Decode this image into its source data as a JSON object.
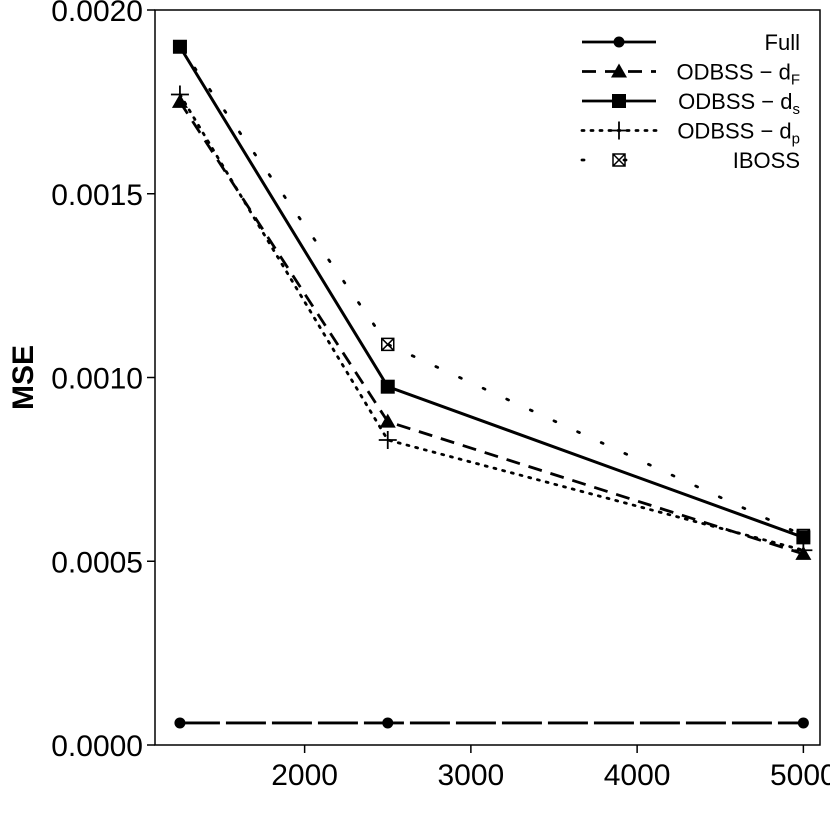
{
  "chart_data": {
    "type": "line",
    "title": "",
    "xlabel": "",
    "ylabel": "MSE",
    "xlim": [
      1100,
      5100
    ],
    "ylim": [
      0.0,
      0.002
    ],
    "x": [
      1250,
      2500,
      5000
    ],
    "xticks": [
      2000,
      3000,
      4000,
      5000
    ],
    "xtick_labels": [
      "2000",
      "3000",
      "4000",
      "5000"
    ],
    "yticks": [
      0.0,
      0.0005,
      0.001,
      0.0015,
      0.002
    ],
    "ytick_labels": [
      "0.0000",
      "0.0005",
      "0.0010",
      "0.0015",
      "0.0020"
    ],
    "grid": false,
    "legend_position": "top-right",
    "series": [
      {
        "name": "Full",
        "label_main": "Full",
        "label_sub": "",
        "values": [
          6e-05,
          6e-05,
          6e-05
        ],
        "line": "longdash",
        "marker": "circle"
      },
      {
        "name": "ODBSS − dF",
        "label_main": "ODBSS − d",
        "label_sub": "F",
        "values": [
          0.00175,
          0.00088,
          0.00052
        ],
        "line": "dashed",
        "marker": "triangle"
      },
      {
        "name": "ODBSS − ds",
        "label_main": "ODBSS − d",
        "label_sub": "s",
        "values": [
          0.0019,
          0.000975,
          0.000565
        ],
        "line": "solid",
        "marker": "square"
      },
      {
        "name": "ODBSS − dp",
        "label_main": "ODBSS − d",
        "label_sub": "p",
        "values": [
          0.00177,
          0.00083,
          0.00053
        ],
        "line": "dotted",
        "marker": "plus"
      },
      {
        "name": "IBOSS",
        "label_main": "IBOSS",
        "label_sub": "",
        "values": [
          0.0019,
          0.00109,
          0.00057
        ],
        "line": "sparse-dotted",
        "marker": "boxed-x"
      }
    ]
  }
}
